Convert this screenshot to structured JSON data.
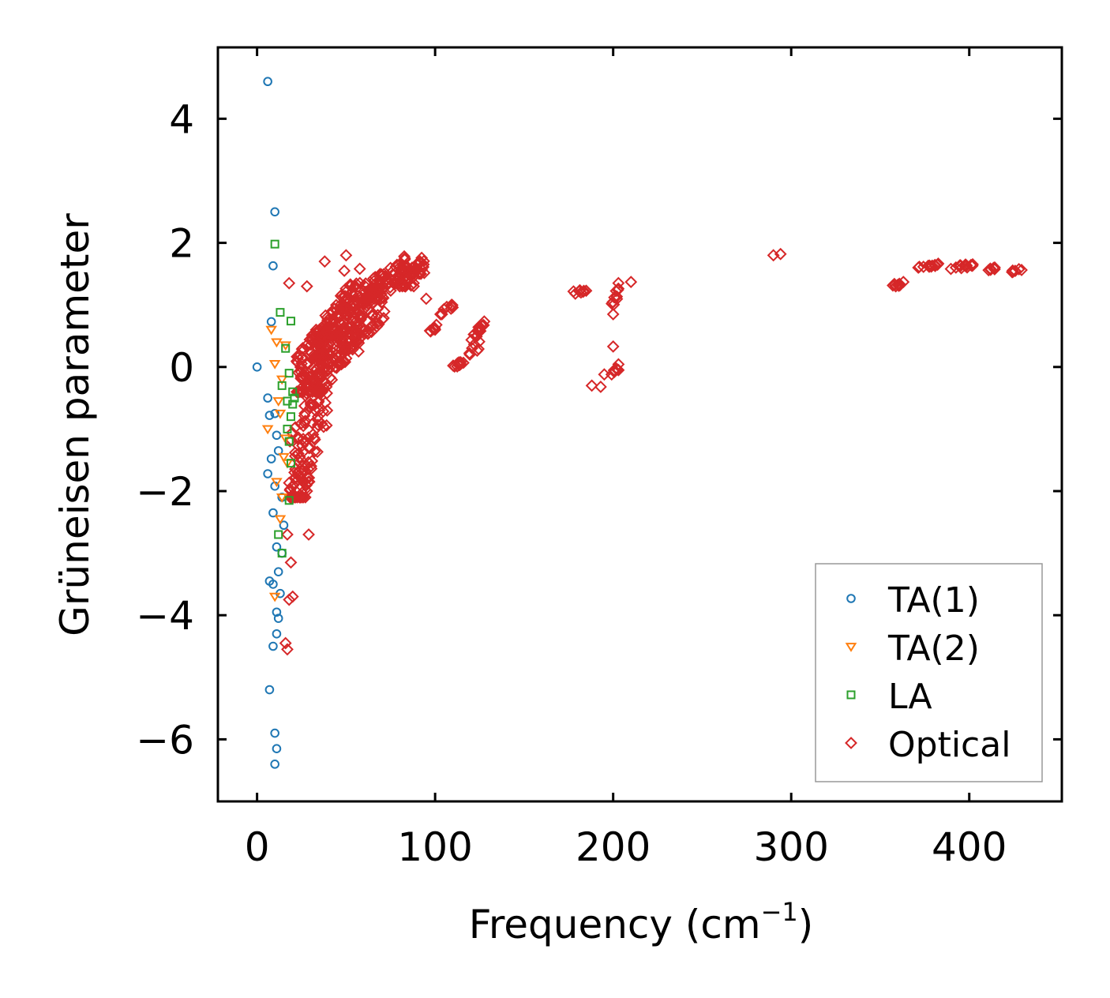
{
  "chart_data": {
    "type": "scatter",
    "title": "",
    "xlabel": "Frequency (cm",
    "xlabel_sup": "−1",
    "xlabel_close": ")",
    "ylabel": "Grüneisen parameter",
    "xlim": [
      -22,
      452
    ],
    "ylim": [
      -7.0,
      5.15
    ],
    "xticks": [
      0,
      100,
      200,
      300,
      400
    ],
    "xtick_labels": [
      "0",
      "100",
      "200",
      "300",
      "400"
    ],
    "yticks": [
      -6,
      -4,
      -2,
      0,
      2,
      4
    ],
    "ytick_labels": [
      "−6",
      "−4",
      "−2",
      "0",
      "2",
      "4"
    ],
    "grid": false,
    "legend_position": "bottom-right",
    "series": [
      {
        "name": "TA(1)",
        "marker": "circle",
        "color": "#1f77b4",
        "points": [
          [
            6,
            4.6
          ],
          [
            10,
            2.5
          ],
          [
            9,
            1.63
          ],
          [
            8,
            0.73
          ],
          [
            0,
            0.0
          ],
          [
            6,
            -0.5
          ],
          [
            7,
            -0.78
          ],
          [
            10,
            -0.75
          ],
          [
            11,
            -1.1
          ],
          [
            12,
            -1.35
          ],
          [
            8,
            -1.48
          ],
          [
            6,
            -1.72
          ],
          [
            10,
            -1.92
          ],
          [
            14,
            -2.1
          ],
          [
            9,
            -2.35
          ],
          [
            15,
            -2.55
          ],
          [
            11,
            -2.9
          ],
          [
            14,
            -3.0
          ],
          [
            7,
            -3.45
          ],
          [
            9,
            -3.5
          ],
          [
            12,
            -3.3
          ],
          [
            13,
            -3.65
          ],
          [
            11,
            -3.95
          ],
          [
            12,
            -4.05
          ],
          [
            11,
            -4.3
          ],
          [
            9,
            -4.5
          ],
          [
            7,
            -5.2
          ],
          [
            10,
            -5.9
          ],
          [
            11,
            -6.15
          ],
          [
            10,
            -6.4
          ]
        ]
      },
      {
        "name": "TA(2)",
        "marker": "triangle-down",
        "color": "#ff7f0e",
        "points": [
          [
            8,
            0.6
          ],
          [
            11,
            0.4
          ],
          [
            16,
            0.35
          ],
          [
            10,
            0.05
          ],
          [
            14,
            -0.2
          ],
          [
            12,
            -0.55
          ],
          [
            13,
            -0.75
          ],
          [
            6,
            -1.0
          ],
          [
            16,
            -1.15
          ],
          [
            15,
            -1.45
          ],
          [
            11,
            -1.85
          ],
          [
            14,
            -2.1
          ],
          [
            13,
            -2.45
          ],
          [
            10,
            -3.7
          ],
          [
            17,
            -1.55
          ]
        ]
      },
      {
        "name": "LA",
        "marker": "square",
        "color": "#2ca02c",
        "points": [
          [
            10,
            1.98
          ],
          [
            13,
            0.88
          ],
          [
            19,
            0.74
          ],
          [
            16,
            0.3
          ],
          [
            18,
            -0.1
          ],
          [
            20,
            -0.4
          ],
          [
            17,
            -0.55
          ],
          [
            14,
            -0.3
          ],
          [
            19,
            -0.8
          ],
          [
            18,
            -1.2
          ],
          [
            19,
            -1.55
          ],
          [
            17,
            -1.0
          ],
          [
            12,
            -2.7
          ],
          [
            14,
            -3.0
          ],
          [
            18,
            -2.15
          ],
          [
            20,
            -0.6
          ],
          [
            21,
            -0.5
          ]
        ]
      },
      {
        "name": "Optical",
        "marker": "diamond",
        "color": "#d62728",
        "clusters": [
          [
            18,
            40,
            -2.1,
            1.0,
            140,
            7
          ],
          [
            22,
            58,
            -0.4,
            1.6,
            220,
            11
          ],
          [
            35,
            72,
            0.2,
            1.55,
            150,
            13
          ],
          [
            60,
            85,
            1.1,
            1.85,
            80,
            17
          ],
          [
            80,
            94,
            1.3,
            1.8,
            40,
            19
          ],
          [
            97,
            101,
            0.55,
            0.7,
            6,
            23
          ],
          [
            103,
            110,
            0.85,
            1.05,
            10,
            29
          ],
          [
            110,
            116,
            0.0,
            0.12,
            10,
            31
          ],
          [
            118,
            128,
            0.2,
            0.8,
            22,
            37
          ],
          [
            176,
            185,
            1.18,
            1.28,
            8,
            41
          ],
          [
            199,
            203,
            0.95,
            1.4,
            10,
            43
          ],
          [
            199,
            203,
            -0.12,
            0.05,
            8,
            47
          ],
          [
            357,
            364,
            1.3,
            1.4,
            8,
            53
          ],
          [
            371,
            385,
            1.6,
            1.68,
            14,
            59
          ],
          [
            389,
            403,
            1.58,
            1.68,
            14,
            61
          ],
          [
            410,
            416,
            1.56,
            1.62,
            6,
            67
          ],
          [
            424,
            431,
            1.53,
            1.6,
            6,
            71
          ]
        ],
        "points": [
          [
            50,
            1.8
          ],
          [
            18,
            1.35
          ],
          [
            95,
            1.1
          ],
          [
            100,
            0.6
          ],
          [
            200,
            0.85
          ],
          [
            200,
            0.33
          ],
          [
            210,
            1.37
          ],
          [
            188,
            -0.3
          ],
          [
            193,
            -0.32
          ],
          [
            195,
            -0.12
          ],
          [
            290,
            1.8
          ],
          [
            294,
            1.82
          ],
          [
            363,
            1.37
          ],
          [
            28,
            -2.0
          ],
          [
            29,
            -2.7
          ],
          [
            17,
            -2.7
          ],
          [
            19,
            -3.15
          ],
          [
            20,
            -3.7
          ],
          [
            18,
            -3.75
          ],
          [
            16,
            -4.45
          ],
          [
            17,
            -4.55
          ],
          [
            26,
            -0.95
          ],
          [
            30,
            -0.65
          ],
          [
            53,
            0.3
          ],
          [
            44,
            0.0
          ],
          [
            57,
            0.25
          ],
          [
            36,
            0.55
          ],
          [
            24,
            -1.45
          ],
          [
            21,
            -1.7
          ],
          [
            28,
            1.3
          ],
          [
            38,
            1.7
          ],
          [
            49,
            1.55
          ],
          [
            88,
            1.35
          ],
          [
            88,
            1.3
          ],
          [
            181,
            1.22
          ],
          [
            203,
            -0.05
          ]
        ]
      }
    ]
  }
}
